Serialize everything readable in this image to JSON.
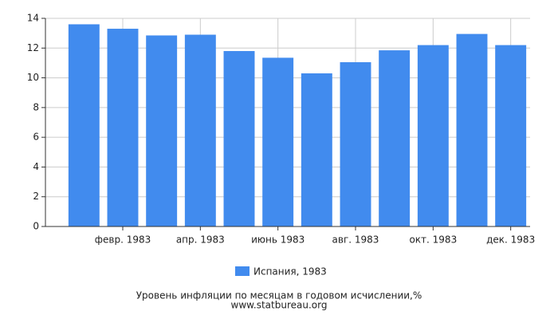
{
  "chart_data": {
    "type": "bar",
    "categories": [
      null,
      "февр. 1983",
      null,
      "апр. 1983",
      null,
      "июнь 1983",
      null,
      "авг. 1983",
      null,
      "окт. 1983",
      null,
      "дек. 1983"
    ],
    "series": [
      {
        "name": "Испания, 1983",
        "color": "#418bee",
        "values": [
          13.6,
          13.3,
          12.85,
          12.9,
          11.8,
          11.35,
          10.3,
          11.05,
          11.85,
          12.2,
          12.95,
          12.2
        ]
      }
    ],
    "ylim": [
      0,
      14
    ],
    "yticks": [
      0,
      2,
      4,
      6,
      8,
      10,
      12,
      14
    ],
    "grid": true,
    "caption": [
      "Уровень инфляции по месяцам в годовом исчислении,%",
      "www.statbureau.org"
    ]
  }
}
